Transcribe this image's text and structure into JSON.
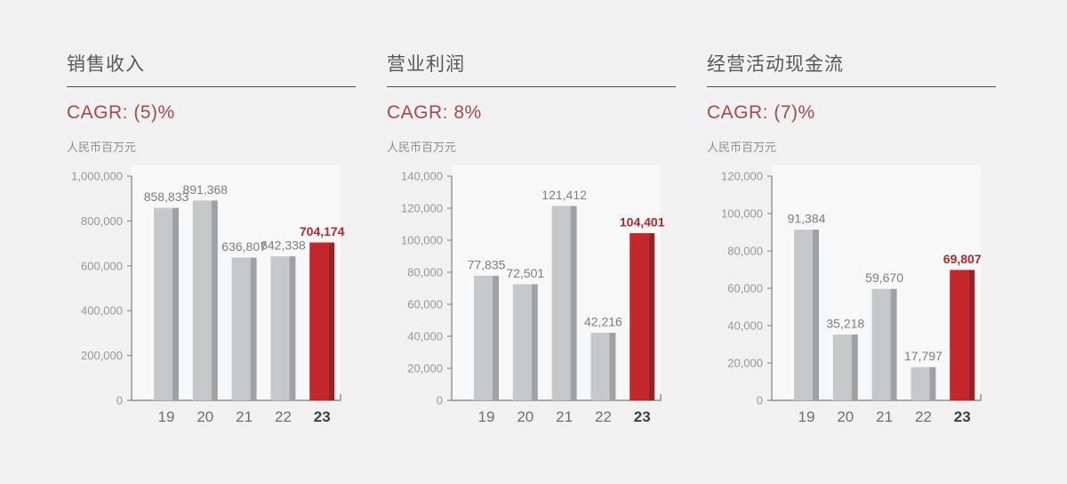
{
  "colors": {
    "page_bg": "#f1f1f2",
    "plot_bg": "#f8f8f9",
    "axis": "#8d8e90",
    "bar_gray": "#c6c7c8",
    "bar_gray_edge": "#a0a1a3",
    "bar_red": "#c4262b",
    "bar_red_edge": "#9e2025",
    "value_label": "#7b7d80",
    "value_label_highlight": "#b2282e",
    "ytick_label": "#96979a",
    "xtick_label": "#6d6f72",
    "xtick_label_highlight": "#3e4043",
    "cagr_text": "#a14a4e"
  },
  "chart_data": [
    {
      "type": "bar",
      "title": "销售收入",
      "subtitle": "CAGR: (5)%",
      "unit": "人民币百万元",
      "categories": [
        "19",
        "20",
        "21",
        "22",
        "23"
      ],
      "values": [
        858833,
        891368,
        636807,
        642338,
        704174
      ],
      "value_labels": [
        "858,833",
        "891,368",
        "636,807",
        "642,338",
        "704,174"
      ],
      "highlight_index": 4,
      "ylim": [
        0,
        1000000
      ],
      "ytick_step": 200000,
      "ytick_labels": [
        "0",
        "200,000",
        "400,000",
        "600,000",
        "800,000",
        "1,000,000"
      ],
      "grid": "off",
      "legend": "none"
    },
    {
      "type": "bar",
      "title": "营业利润",
      "subtitle": "CAGR: 8%",
      "unit": "人民币百万元",
      "categories": [
        "19",
        "20",
        "21",
        "22",
        "23"
      ],
      "values": [
        77835,
        72501,
        121412,
        42216,
        104401
      ],
      "value_labels": [
        "77,835",
        "72,501",
        "121,412",
        "42,216",
        "104,401"
      ],
      "highlight_index": 4,
      "ylim": [
        0,
        140000
      ],
      "ytick_step": 20000,
      "ytick_labels": [
        "0",
        "20,000",
        "40,000",
        "60,000",
        "80,000",
        "100,000",
        "120,000",
        "140,000"
      ],
      "grid": "off",
      "legend": "none"
    },
    {
      "type": "bar",
      "title": "经营活动现金流",
      "subtitle": "CAGR: (7)%",
      "unit": "人民币百万元",
      "categories": [
        "19",
        "20",
        "21",
        "22",
        "23"
      ],
      "values": [
        91384,
        35218,
        59670,
        17797,
        69807
      ],
      "value_labels": [
        "91,384",
        "35,218",
        "59,670",
        "17,797",
        "69,807"
      ],
      "highlight_index": 4,
      "ylim": [
        0,
        120000
      ],
      "ytick_step": 20000,
      "ytick_labels": [
        "0",
        "20,000",
        "40,000",
        "60,000",
        "80,000",
        "100,000",
        "120,000"
      ],
      "grid": "off",
      "legend": "none"
    }
  ]
}
